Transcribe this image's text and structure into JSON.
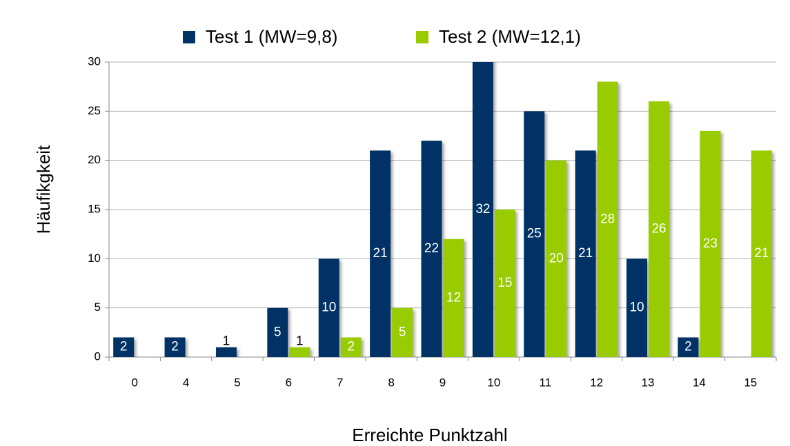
{
  "chart_data": {
    "type": "bar",
    "x_label": "Erreichte Punktzahl",
    "y_label": "Häufikgkeit",
    "categories": [
      "0",
      "4",
      "5",
      "6",
      "7",
      "8",
      "9",
      "10",
      "11",
      "12",
      "13",
      "14",
      "15"
    ],
    "series": [
      {
        "name": "Test 1 (MW=9,8)",
        "color": "#003366",
        "values": [
          2,
          2,
          1,
          5,
          10,
          21,
          22,
          32,
          25,
          21,
          10,
          2,
          null
        ]
      },
      {
        "name": "Test 2 (MW=12,1)",
        "color": "#99cc00",
        "values": [
          null,
          null,
          null,
          1,
          2,
          5,
          12,
          15,
          20,
          28,
          26,
          23,
          21
        ]
      }
    ],
    "ylim": [
      0,
      30
    ],
    "yticks": [
      0,
      5,
      10,
      15,
      20,
      25,
      30
    ],
    "grid": true,
    "legend": "top"
  }
}
